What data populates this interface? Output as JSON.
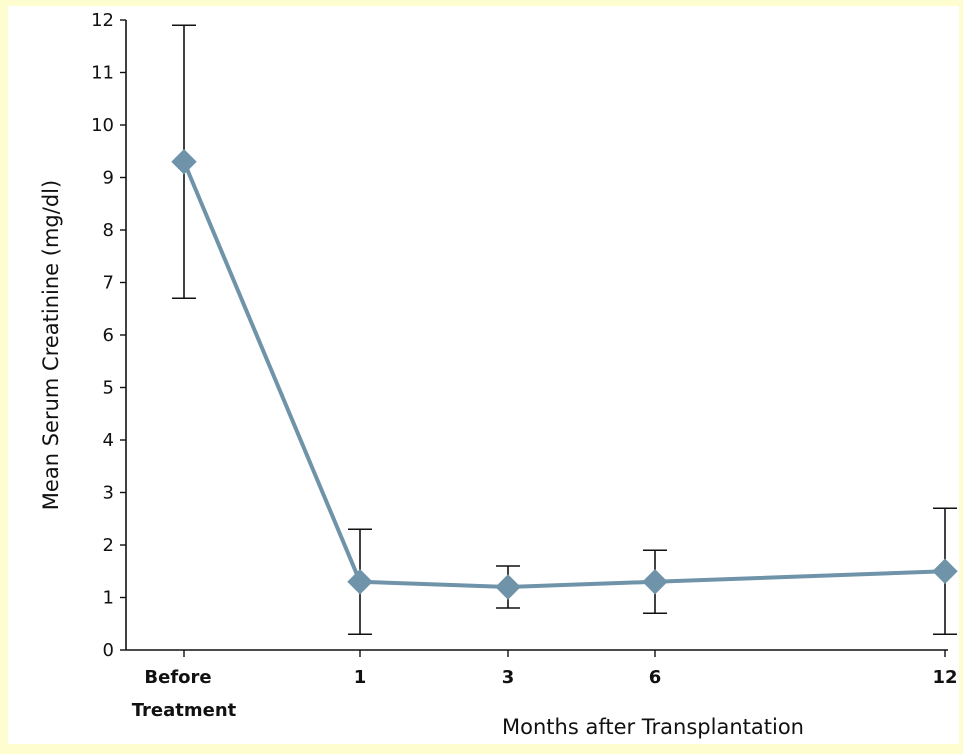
{
  "chart_data": {
    "type": "line",
    "title": "",
    "ylabel": "Mean Serum Creatinine (mg/dl)",
    "xlabel": "Months after Transplantation",
    "ylim": [
      0,
      12
    ],
    "yticks": [
      "0",
      "1",
      "2",
      "3",
      "4",
      "5",
      "6",
      "7",
      "8",
      "9",
      "10",
      "11",
      "12"
    ],
    "categories": [
      {
        "lines": [
          "Before",
          "Treatment"
        ]
      },
      {
        "lines": [
          "1"
        ]
      },
      {
        "lines": [
          "3"
        ]
      },
      {
        "lines": [
          "6"
        ]
      },
      {
        "lines": [
          "12"
        ]
      }
    ],
    "series": [
      {
        "color": "#6f93a8",
        "values": [
          9.3,
          1.3,
          1.2,
          1.3,
          1.5
        ],
        "error_low": [
          6.7,
          0.3,
          0.8,
          0.7,
          0.3
        ],
        "error_high": [
          11.9,
          2.3,
          1.6,
          1.9,
          2.7
        ]
      }
    ],
    "grid": false,
    "legend": "none"
  }
}
